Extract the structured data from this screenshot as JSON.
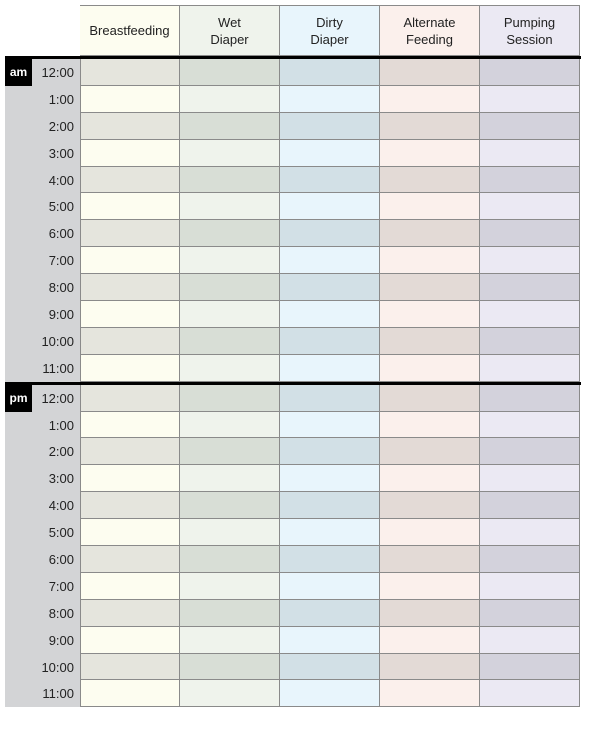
{
  "columns": [
    {
      "label": "Breastfeeding",
      "light": "#fdfdf0",
      "dark": "#e5e5dd"
    },
    {
      "label": "Wet\nDiaper",
      "light": "#eff3ec",
      "dark": "#d8ded6"
    },
    {
      "label": "Dirty\nDiaper",
      "light": "#e8f5fc",
      "dark": "#d2e0e6"
    },
    {
      "label": "Alternate\nFeeding",
      "light": "#fbf0ec",
      "dark": "#e3dad6"
    },
    {
      "label": "Pumping\nSession",
      "light": "#ebe9f3",
      "dark": "#d3d2dc"
    }
  ],
  "halves": [
    {
      "period": "am",
      "times": [
        "12:00",
        "1:00",
        "2:00",
        "3:00",
        "4:00",
        "5:00",
        "6:00",
        "7:00",
        "8:00",
        "9:00",
        "10:00",
        "11:00"
      ]
    },
    {
      "period": "pm",
      "times": [
        "12:00",
        "1:00",
        "2:00",
        "3:00",
        "4:00",
        "5:00",
        "6:00",
        "7:00",
        "8:00",
        "9:00",
        "10:00",
        "11:00"
      ]
    }
  ]
}
